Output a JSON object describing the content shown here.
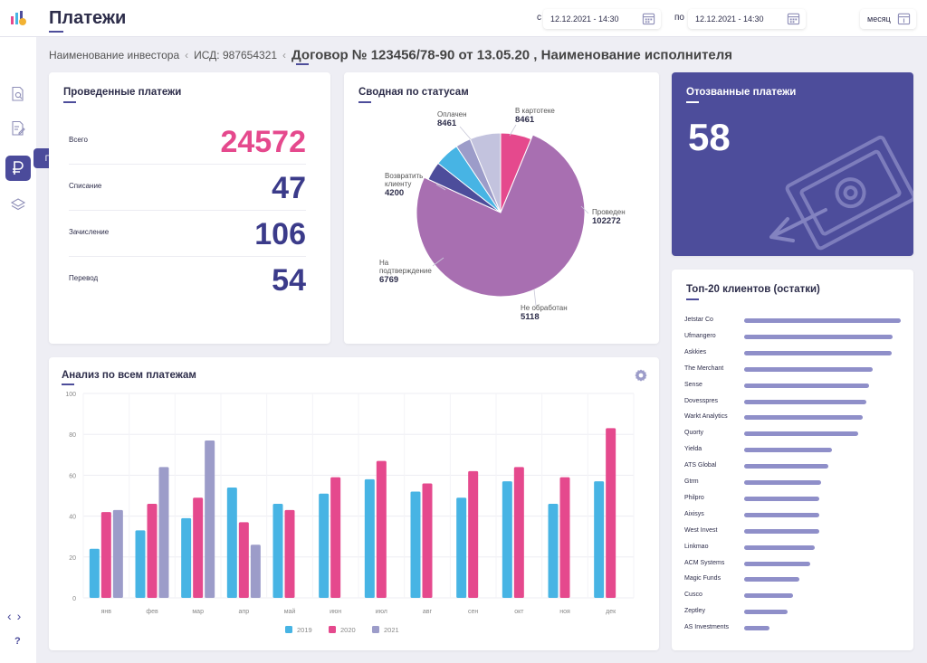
{
  "header": {
    "title": "Платежи",
    "date_from_label": "с",
    "date_from": "12.12.2021 - 14:30",
    "date_to_label": "по",
    "date_to": "12.12.2021 - 14:30",
    "period": "месяц"
  },
  "sidebar": {
    "tooltip": "Платежи",
    "help": "?"
  },
  "breadcrumb": {
    "investor": "Наименование инвестора",
    "isd": "ИСД: 987654321",
    "current": "Договор № 123456/78-90 от 13.05.20 , Наименование исполнителя"
  },
  "payments": {
    "title": "Проведенные платежи",
    "rows": [
      {
        "label": "Всего",
        "value": "24572"
      },
      {
        "label": "Списание",
        "value": "47"
      },
      {
        "label": "Зачисление",
        "value": "106"
      },
      {
        "label": "Перевод",
        "value": "54"
      }
    ]
  },
  "status_summary": {
    "title": "Сводная по статусам",
    "slices": [
      {
        "label": "В картотеке",
        "value": 8461,
        "value_text": "8461",
        "color": "#e5498d"
      },
      {
        "label": "Проведен",
        "value": 102272,
        "value_text": "102272",
        "color": "#a86fb1"
      },
      {
        "label": "Не обработан",
        "value": 5118,
        "value_text": "5118",
        "color": "#4d4d9b"
      },
      {
        "label": "На подтверждение",
        "value": 6769,
        "value_text": "6769",
        "color": "#47b4e4"
      },
      {
        "label": "Возвратить клиенту",
        "value": 4200,
        "value_text": "4200",
        "color": "#9c9cc9"
      },
      {
        "label": "Оплачен",
        "value": 8461,
        "value_text": "8461",
        "color": "#c3c3de"
      }
    ]
  },
  "recalled": {
    "title": "Отозванные платежи",
    "value": "58"
  },
  "chart_data": {
    "type": "bar",
    "title": "Анализ по всем платежам",
    "categories": [
      "янв",
      "фев",
      "мар",
      "апр",
      "май",
      "июн",
      "июл",
      "авг",
      "сен",
      "окт",
      "ноя",
      "дек"
    ],
    "series": [
      {
        "name": "2019",
        "color": "#47b4e4",
        "values": [
          24,
          33,
          39,
          54,
          46,
          51,
          58,
          52,
          49,
          57,
          46,
          57
        ]
      },
      {
        "name": "2020",
        "color": "#e5498d",
        "values": [
          42,
          46,
          49,
          37,
          43,
          59,
          67,
          56,
          62,
          64,
          59,
          83
        ]
      },
      {
        "name": "2021",
        "color": "#9c9cc9",
        "values": [
          43,
          64,
          77,
          26,
          null,
          null,
          null,
          null,
          null,
          null,
          null,
          null
        ]
      }
    ],
    "ylim": [
      0,
      100
    ],
    "yticks": [
      0,
      20,
      40,
      60,
      80,
      100
    ],
    "legend": "bottom"
  },
  "top_clients": {
    "title": "Топ-20 клиентов (остатки)",
    "items": [
      {
        "name": "Jetstar Co",
        "value": 100
      },
      {
        "name": "Ufmangero",
        "value": 95
      },
      {
        "name": "Askkies",
        "value": 94
      },
      {
        "name": "The Merchant",
        "value": 82
      },
      {
        "name": "Sense",
        "value": 80
      },
      {
        "name": "Dovesspres",
        "value": 78
      },
      {
        "name": "Warkt Analytics",
        "value": 76
      },
      {
        "name": "Quorty",
        "value": 73
      },
      {
        "name": "Yielda",
        "value": 56
      },
      {
        "name": "ATS Global",
        "value": 54
      },
      {
        "name": "Gtrm",
        "value": 49
      },
      {
        "name": "Philpro",
        "value": 48
      },
      {
        "name": "Aixisys",
        "value": 48
      },
      {
        "name": "West Invest",
        "value": 48
      },
      {
        "name": "Linkmao",
        "value": 45
      },
      {
        "name": "ACM Systems",
        "value": 42
      },
      {
        "name": "Magic Funds",
        "value": 35
      },
      {
        "name": "Cusco",
        "value": 31
      },
      {
        "name": "Zeptley",
        "value": 28
      },
      {
        "name": "AS Investments",
        "value": 16
      }
    ]
  },
  "colors": {
    "accent": "#4d4d9b",
    "pink": "#e5498d",
    "blue": "#47b4e4",
    "lavender": "#9c9cc9"
  }
}
